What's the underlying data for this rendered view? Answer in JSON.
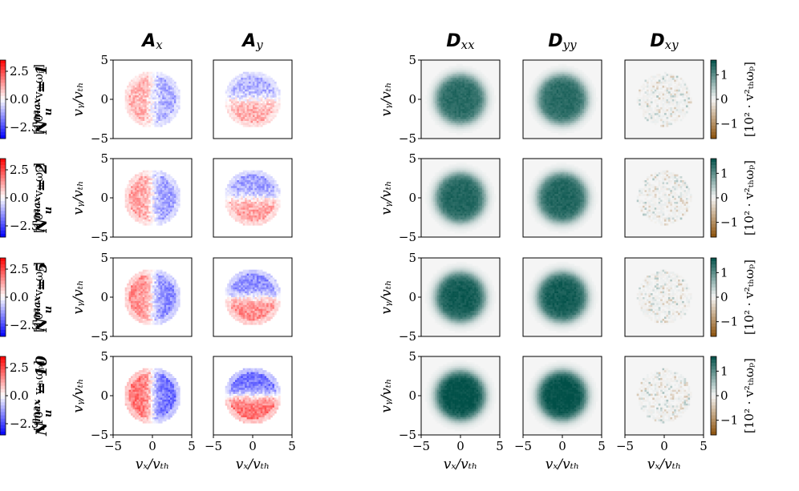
{
  "chart_data": {
    "type": "heatmap",
    "columns": [
      {
        "key": "Ax",
        "title_main": "A",
        "title_sub": "x",
        "colormap": "bwr",
        "colorbar": false
      },
      {
        "key": "Ay",
        "title_main": "A",
        "title_sub": "y",
        "colormap": "bwr",
        "colorbar": true,
        "colorbar_ticks": [
          "2.5",
          "0.0",
          "−2.5"
        ],
        "colorbar_values": [
          2.5,
          0.0,
          -2.5
        ],
        "colorbar_range": [
          -3.5,
          3.5
        ],
        "colorbar_label": "[10² · vₜₕωₚ]"
      },
      {
        "key": "Dxx",
        "title_main": "D",
        "title_sub": "xx",
        "colormap": "BrBG",
        "colorbar": false
      },
      {
        "key": "Dyy",
        "title_main": "D",
        "title_sub": "yy",
        "colormap": "BrBG",
        "colorbar": false
      },
      {
        "key": "Dxy",
        "title_main": "D",
        "title_sub": "xy",
        "colormap": "BrBG",
        "colorbar": true,
        "colorbar_ticks": [
          "1",
          "0",
          "−1"
        ],
        "colorbar_values": [
          1,
          0,
          -1
        ],
        "colorbar_range": [
          -1.6,
          1.6
        ],
        "colorbar_label": "[10² · v²ₜₕωₚ]"
      }
    ],
    "rows": [
      {
        "label_main": "N",
        "label_sub": "u",
        "label_sup": "max",
        "label_value": "= 1",
        "intensity": 0.55
      },
      {
        "label_main": "N",
        "label_sub": "u",
        "label_sup": "max",
        "label_value": "= 2",
        "intensity": 0.65
      },
      {
        "label_main": "N",
        "label_sub": "u",
        "label_sup": "max",
        "label_value": "= 5",
        "intensity": 0.8
      },
      {
        "label_main": "N",
        "label_sub": "u",
        "label_sup": "max",
        "label_value": "= 10",
        "intensity": 1.0
      }
    ],
    "x_ticks": [
      "−5",
      "0",
      "5"
    ],
    "x_tick_values": [
      -5,
      0,
      5
    ],
    "y_ticks": [
      "5",
      "0",
      "−5"
    ],
    "y_tick_values": [
      5,
      0,
      -5
    ],
    "xlim": [
      -5,
      5
    ],
    "ylim": [
      -5,
      5
    ],
    "xlabel": "vₓ/vₜₕ",
    "ylabel": "vᵧ/vₜₕ",
    "grid": false
  }
}
